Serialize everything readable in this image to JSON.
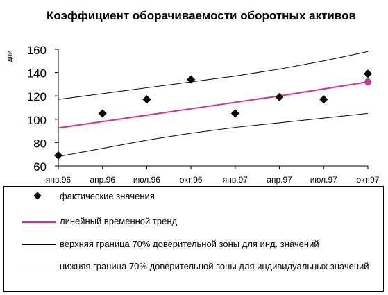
{
  "chart_data": {
    "type": "line",
    "title": "Коэффициент оборачиваемости оборотных активов",
    "ylabel": "дни",
    "xlabel": "",
    "ylim": [
      60,
      160
    ],
    "yticks": [
      60,
      80,
      100,
      120,
      140,
      160
    ],
    "grid": false,
    "categories": [
      "янв.96",
      "апр.96",
      "июл.96",
      "окт.96",
      "янв.97",
      "апр.97",
      "июл.97",
      "окт.97"
    ],
    "series": [
      {
        "name": "фактические значения",
        "kind": "markers",
        "marker": "diamond",
        "color": "#000000",
        "values": [
          69,
          105,
          117,
          134,
          105,
          119,
          117,
          139
        ]
      },
      {
        "name": "линейный временной тренд",
        "kind": "line",
        "color": "#cc3399",
        "values": [
          92.5,
          98,
          103.5,
          109,
          114.5,
          120,
          126,
          132
        ],
        "end_marker": "circle"
      },
      {
        "name": "верхняя граница 70% доверительной зоны для инд. значений",
        "kind": "line",
        "color": "#000000",
        "values": [
          117,
          122,
          127,
          132,
          137,
          143,
          150,
          158
        ]
      },
      {
        "name": "нижняя граница 70% доверительной зоны для индивидуальных значений",
        "kind": "line",
        "color": "#000000",
        "values": [
          68,
          75,
          82,
          88,
          93,
          97,
          101,
          105
        ]
      }
    ],
    "legend": {
      "placement": "bottom",
      "entries": [
        "фактические значения",
        "линейный временной тренд",
        "верхняя граница 70% доверительной зоны для инд. значений",
        "нижняя граница 70% доверительной зоны для индивидуальных значений"
      ]
    }
  }
}
